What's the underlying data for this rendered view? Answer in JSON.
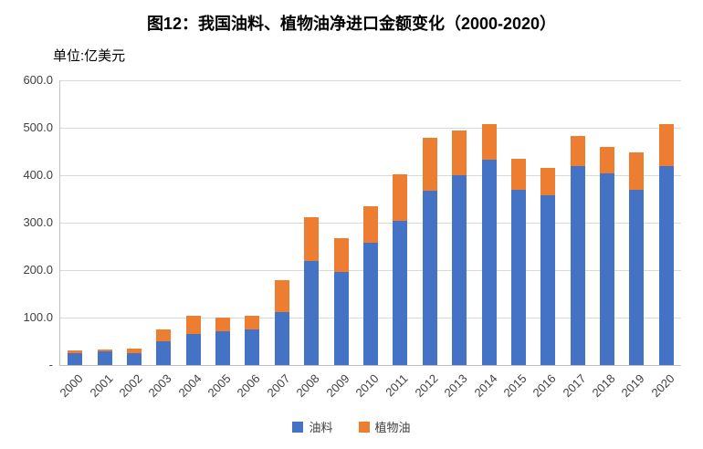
{
  "title": "图12：我国油料、植物油净进口金额变化（2000-2020）",
  "unit_label": "单位:亿美元",
  "colors": {
    "series_oilseed": "#4472C4",
    "series_vegoil": "#ED7D31",
    "gridline": "#D9D9D9",
    "axis": "#BFBFBF"
  },
  "chart_data": {
    "type": "bar",
    "stacked": true,
    "title": "图12：我国油料、植物油净进口金额变化（2000-2020）",
    "ylabel": "单位:亿美元",
    "xlabel": "",
    "grid": true,
    "legend_position": "bottom",
    "ylim": [
      0,
      600
    ],
    "ytick_labels": [
      "600.0",
      "500.0",
      "400.0",
      "300.0",
      "200.0",
      "100.0",
      "-"
    ],
    "ytick_values": [
      600,
      500,
      400,
      300,
      200,
      100,
      0
    ],
    "categories": [
      "2000",
      "2001",
      "2002",
      "2003",
      "2004",
      "2005",
      "2006",
      "2007",
      "2008",
      "2009",
      "2010",
      "2011",
      "2012",
      "2013",
      "2014",
      "2015",
      "2016",
      "2017",
      "2018",
      "2019",
      "2020"
    ],
    "series": [
      {
        "name": "油料",
        "color": "#4472C4",
        "values": [
          25,
          28,
          25,
          50,
          65,
          72,
          75,
          112,
          220,
          197,
          258,
          303,
          367,
          400,
          433,
          370,
          358,
          420,
          403,
          370,
          420
        ]
      },
      {
        "name": "植物油",
        "color": "#ED7D31",
        "values": [
          5,
          5,
          10,
          25,
          38,
          28,
          28,
          66,
          92,
          70,
          77,
          99,
          111,
          95,
          75,
          65,
          57,
          63,
          57,
          78,
          88
        ]
      }
    ]
  }
}
